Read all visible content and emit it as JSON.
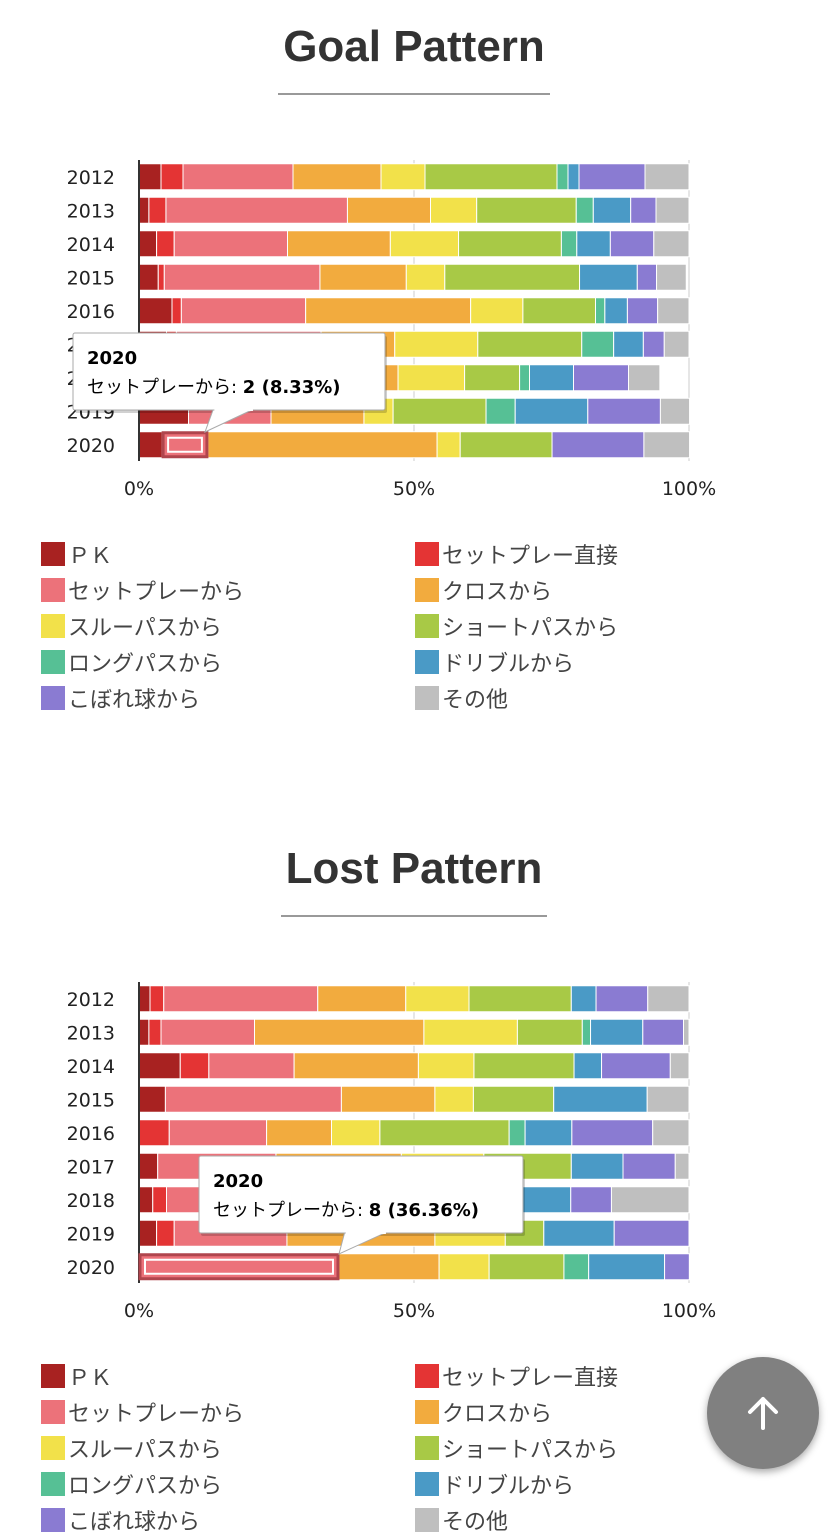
{
  "legend_colors": [
    "#a82221",
    "#e43434",
    "#ec727a",
    "#f2ab3e",
    "#f2e14a",
    "#a8c946",
    "#56c095",
    "#4a9ac6",
    "#8a7bd2",
    "#bfbfbf"
  ],
  "sections": [
    {
      "title": "Goal Pattern",
      "tooltip": {
        "title": "2020",
        "label": "セットプレーから: ",
        "value": "2 (8.33%)",
        "category_index": 8,
        "series_index": 2
      },
      "chart_data": {
        "type": "bar",
        "orientation": "horizontal",
        "stacked": "percent",
        "categories": [
          "2012",
          "2013",
          "2014",
          "2015",
          "2016",
          "2017",
          "2018",
          "2019",
          "2020"
        ],
        "x_ticks": [
          "0%",
          "50%",
          "100%"
        ],
        "xlim": [
          0,
          100
        ],
        "series": [
          {
            "name": "ＰＫ",
            "values": [
              4.0,
              1.8,
              3.2,
              3.5,
              6.0,
              5.0,
              5.0,
              9.0,
              4.2
            ]
          },
          {
            "name": "セットプレー直接",
            "values": [
              4.0,
              3.1,
              3.2,
              1.1,
              1.7,
              1.8,
              1.8,
              0,
              0
            ]
          },
          {
            "name": "セットプレーから",
            "values": [
              20.0,
              33.0,
              20.6,
              28.3,
              22.6,
              26.3,
              22.0,
              15.0,
              8.33
            ]
          },
          {
            "name": "クロスから",
            "values": [
              16.0,
              15.1,
              18.7,
              15.7,
              30.0,
              13.4,
              18.3,
              16.9,
              41.67
            ]
          },
          {
            "name": "スルーパスから",
            "values": [
              8.0,
              8.4,
              12.4,
              7.0,
              9.5,
              15.1,
              12.1,
              5.3,
              4.2
            ]
          },
          {
            "name": "ショートパスから",
            "values": [
              24.0,
              18.1,
              18.7,
              24.5,
              13.2,
              18.9,
              10.0,
              16.9,
              16.7
            ]
          },
          {
            "name": "ロングパスから",
            "values": [
              2.0,
              3.1,
              2.8,
              0,
              1.7,
              5.8,
              1.8,
              5.3,
              0
            ]
          },
          {
            "name": "ドリブルから",
            "values": [
              2.0,
              6.8,
              6.1,
              10.5,
              4.1,
              5.4,
              8.0,
              13.2,
              0
            ]
          },
          {
            "name": "こぼれ球から",
            "values": [
              12.0,
              4.6,
              7.9,
              3.5,
              5.5,
              3.8,
              10.0,
              13.2,
              16.7
            ]
          },
          {
            "name": "その他",
            "values": [
              8.0,
              6.0,
              6.4,
              5.4,
              5.7,
              4.5,
              5.7,
              5.3,
              8.3
            ]
          }
        ]
      }
    },
    {
      "title": "Lost Pattern",
      "tooltip": {
        "title": "2020",
        "label": "セットプレーから: ",
        "value": "8 (36.36%)",
        "category_index": 8,
        "series_index": 2
      },
      "chart_data": {
        "type": "bar",
        "orientation": "horizontal",
        "stacked": "percent",
        "categories": [
          "2012",
          "2013",
          "2014",
          "2015",
          "2016",
          "2017",
          "2018",
          "2019",
          "2020"
        ],
        "x_ticks": [
          "0%",
          "50%",
          "100%"
        ],
        "xlim": [
          0,
          100
        ],
        "series": [
          {
            "name": "ＰＫ",
            "values": [
              2.0,
              1.8,
              7.5,
              4.8,
              0,
              3.4,
              2.5,
              3.2,
              0
            ]
          },
          {
            "name": "セットプレー直接",
            "values": [
              2.5,
              2.2,
              5.2,
              0,
              5.5,
              0,
              2.5,
              3.2,
              0
            ]
          },
          {
            "name": "セットプレーから",
            "values": [
              28.0,
              17.0,
              15.5,
              32.0,
              17.7,
              21.5,
              20.0,
              20.5,
              36.36
            ]
          },
          {
            "name": "クロスから",
            "values": [
              16.0,
              30.8,
              22.6,
              17.0,
              11.8,
              22.8,
              15.0,
              26.9,
              18.2
            ]
          },
          {
            "name": "スルーパスから",
            "values": [
              11.5,
              17.0,
              10.1,
              7.0,
              8.8,
              15.0,
              10.5,
              12.8,
              9.1
            ]
          },
          {
            "name": "ショートパスから",
            "values": [
              18.6,
              11.8,
              18.2,
              14.6,
              23.5,
              15.9,
              10.5,
              7.0,
              13.6
            ]
          },
          {
            "name": "ロングパスから",
            "values": [
              0,
              1.5,
              0,
              0,
              2.9,
              0,
              0,
              0,
              4.5
            ]
          },
          {
            "name": "ドリブルから",
            "values": [
              4.5,
              9.5,
              5.0,
              17.0,
              8.5,
              9.4,
              17.5,
              12.8,
              13.8
            ]
          },
          {
            "name": "こぼれ球から",
            "values": [
              9.4,
              7.4,
              12.5,
              0,
              14.7,
              9.5,
              7.4,
              13.6,
              4.5
            ]
          },
          {
            "name": "その他",
            "values": [
              7.5,
              1.0,
              3.4,
              7.6,
              6.6,
              2.5,
              14.1,
              0,
              0
            ]
          }
        ]
      }
    }
  ],
  "scroll_top_icon": "arrow-up-icon"
}
